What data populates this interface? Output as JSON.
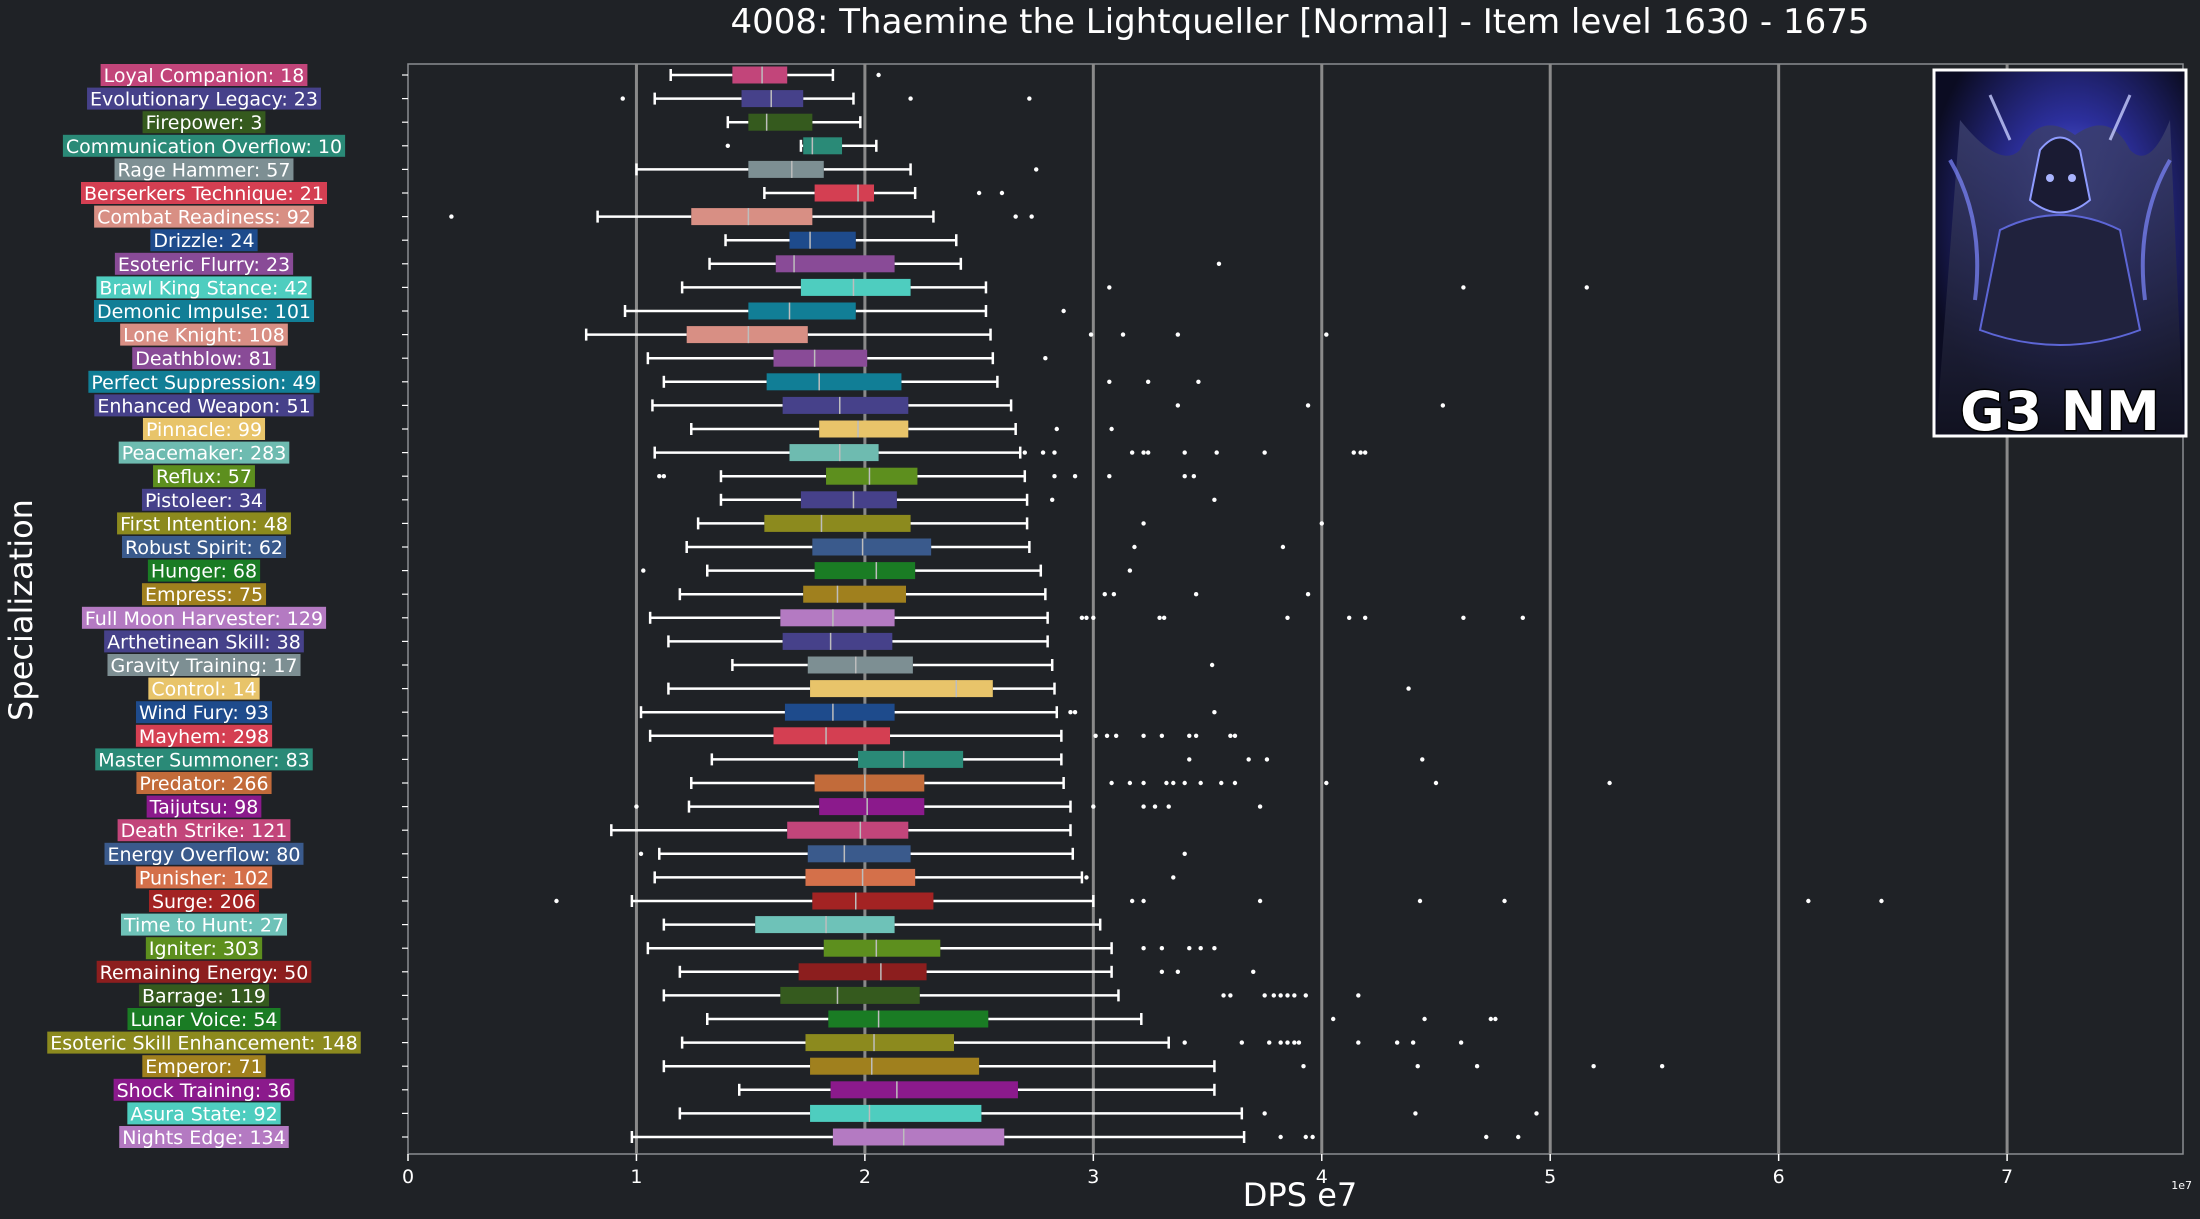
{
  "chart_data": {
    "type": "box",
    "title": "4008: Thaemine the Lightqueller [Normal] - Item level 1630 - 1675",
    "xlabel": "DPS e7",
    "ylabel": "Specialization",
    "x_scale_note": "1e7",
    "xlim": [
      0,
      7.77
    ],
    "x_ticks": [
      "0",
      "1",
      "2",
      "3",
      "4",
      "5",
      "6",
      "7"
    ],
    "x_tick_values": [
      0,
      1,
      2,
      3,
      4,
      5,
      6,
      7
    ],
    "grid": "vertical",
    "categories": [
      {
        "label": "Loyal Companion: 18",
        "color": "#c2457a",
        "whislo": 1.15,
        "q1": 1.42,
        "med": 1.55,
        "q3": 1.66,
        "whishi": 1.86,
        "fliers": [
          2.06
        ]
      },
      {
        "label": "Evolutionary Legacy: 23",
        "color": "#46418a",
        "whislo": 1.08,
        "q1": 1.46,
        "med": 1.59,
        "q3": 1.73,
        "whishi": 1.95,
        "fliers": [
          0.94,
          2.2,
          2.72
        ]
      },
      {
        "label": "Firepower: 3",
        "color": "#355a1e",
        "whislo": 1.4,
        "q1": 1.49,
        "med": 1.57,
        "q3": 1.77,
        "whishi": 1.98,
        "fliers": []
      },
      {
        "label": "Communication Overflow: 10",
        "color": "#2a8a77",
        "whislo": 1.72,
        "q1": 1.73,
        "med": 1.77,
        "q3": 1.9,
        "whishi": 2.05,
        "fliers": [
          1.4
        ]
      },
      {
        "label": "Rage Hammer: 57",
        "color": "#7d8f93",
        "whislo": 1.0,
        "q1": 1.49,
        "med": 1.68,
        "q3": 1.82,
        "whishi": 2.2,
        "fliers": [
          2.75
        ]
      },
      {
        "label": "Berserkers Technique: 21",
        "color": "#d43f52",
        "whislo": 1.56,
        "q1": 1.78,
        "med": 1.97,
        "q3": 2.04,
        "whishi": 2.22,
        "fliers": [
          2.5,
          2.6
        ]
      },
      {
        "label": "Combat Readiness: 92",
        "color": "#d88f84",
        "whislo": 0.83,
        "q1": 1.24,
        "med": 1.49,
        "q3": 1.77,
        "whishi": 2.3,
        "fliers": [
          0.19,
          2.66,
          2.73
        ]
      },
      {
        "label": "Drizzle: 24",
        "color": "#1e4b8c",
        "whislo": 1.39,
        "q1": 1.67,
        "med": 1.76,
        "q3": 1.96,
        "whishi": 2.4,
        "fliers": []
      },
      {
        "label": "Esoteric Flurry: 23",
        "color": "#894b97",
        "whislo": 1.32,
        "q1": 1.61,
        "med": 1.69,
        "q3": 2.13,
        "whishi": 2.42,
        "fliers": [
          3.55
        ]
      },
      {
        "label": "Brawl King Stance: 42",
        "color": "#4ecdbf",
        "whislo": 1.2,
        "q1": 1.72,
        "med": 1.95,
        "q3": 2.2,
        "whishi": 2.53,
        "fliers": [
          3.07,
          4.62,
          5.16
        ]
      },
      {
        "label": "Demonic Impulse: 101",
        "color": "#117e96",
        "whislo": 0.95,
        "q1": 1.49,
        "med": 1.67,
        "q3": 1.96,
        "whishi": 2.53,
        "fliers": [
          2.87
        ]
      },
      {
        "label": "Lone Knight: 108",
        "color": "#d88f84",
        "whislo": 0.78,
        "q1": 1.22,
        "med": 1.49,
        "q3": 1.75,
        "whishi": 2.55,
        "fliers": [
          2.99,
          3.13,
          3.37,
          4.02
        ]
      },
      {
        "label": "Deathblow: 81",
        "color": "#894b97",
        "whislo": 1.05,
        "q1": 1.6,
        "med": 1.78,
        "q3": 2.01,
        "whishi": 2.56,
        "fliers": [
          2.79
        ]
      },
      {
        "label": "Perfect Suppression: 49",
        "color": "#117e96",
        "whislo": 1.12,
        "q1": 1.57,
        "med": 1.8,
        "q3": 2.16,
        "whishi": 2.58,
        "fliers": [
          3.07,
          3.24,
          3.46
        ]
      },
      {
        "label": "Enhanced Weapon: 51",
        "color": "#46418a",
        "whislo": 1.07,
        "q1": 1.64,
        "med": 1.89,
        "q3": 2.19,
        "whishi": 2.64,
        "fliers": [
          3.37,
          3.94,
          4.53
        ]
      },
      {
        "label": "Pinnacle: 99",
        "color": "#e8c46a",
        "whislo": 1.24,
        "q1": 1.8,
        "med": 1.97,
        "q3": 2.19,
        "whishi": 2.66,
        "fliers": [
          2.84,
          3.08
        ]
      },
      {
        "label": "Peacemaker: 283",
        "color": "#6ebbb0",
        "whislo": 1.08,
        "q1": 1.67,
        "med": 1.89,
        "q3": 2.06,
        "whishi": 2.68,
        "fliers": [
          2.7,
          2.78,
          2.83,
          3.17,
          3.22,
          3.24,
          3.4,
          3.54,
          3.75,
          4.14,
          4.17,
          4.19
        ]
      },
      {
        "label": "Reflux: 57",
        "color": "#5d8f1e",
        "whislo": 1.37,
        "q1": 1.83,
        "med": 2.02,
        "q3": 2.23,
        "whishi": 2.7,
        "fliers": [
          1.1,
          1.12,
          2.83,
          2.92,
          3.07,
          3.4,
          3.44
        ]
      },
      {
        "label": "Pistoleer: 34",
        "color": "#46418a",
        "whislo": 1.37,
        "q1": 1.72,
        "med": 1.95,
        "q3": 2.14,
        "whishi": 2.71,
        "fliers": [
          2.82,
          3.53
        ]
      },
      {
        "label": "First Intention: 48",
        "color": "#8c8a1e",
        "whislo": 1.27,
        "q1": 1.56,
        "med": 1.81,
        "q3": 2.2,
        "whishi": 2.71,
        "fliers": [
          3.22,
          4.0
        ]
      },
      {
        "label": "Robust Spirit: 62",
        "color": "#3a5a8c",
        "whislo": 1.22,
        "q1": 1.77,
        "med": 1.99,
        "q3": 2.29,
        "whishi": 2.72,
        "fliers": [
          3.18,
          3.83
        ]
      },
      {
        "label": "Hunger: 68",
        "color": "#1a7c24",
        "whislo": 1.31,
        "q1": 1.78,
        "med": 2.05,
        "q3": 2.22,
        "whishi": 2.77,
        "fliers": [
          1.03,
          3.16
        ]
      },
      {
        "label": "Empress: 75",
        "color": "#a0801e",
        "whislo": 1.19,
        "q1": 1.73,
        "med": 1.88,
        "q3": 2.18,
        "whishi": 2.79,
        "fliers": [
          3.05,
          3.09,
          3.45,
          3.94
        ]
      },
      {
        "label": "Full Moon Harvester: 129",
        "color": "#b47ac2",
        "whislo": 1.06,
        "q1": 1.63,
        "med": 1.86,
        "q3": 2.13,
        "whishi": 2.8,
        "fliers": [
          2.95,
          2.97,
          3.0,
          3.29,
          3.31,
          3.85,
          4.12,
          4.19,
          4.62,
          4.88
        ]
      },
      {
        "label": "Arthetinean Skill: 38",
        "color": "#46418a",
        "whislo": 1.14,
        "q1": 1.64,
        "med": 1.85,
        "q3": 2.12,
        "whishi": 2.8,
        "fliers": []
      },
      {
        "label": "Gravity Training: 17",
        "color": "#7d8f93",
        "whislo": 1.42,
        "q1": 1.75,
        "med": 1.96,
        "q3": 2.21,
        "whishi": 2.82,
        "fliers": [
          3.52
        ]
      },
      {
        "label": "Control: 14",
        "color": "#e8c46a",
        "whislo": 1.14,
        "q1": 1.76,
        "med": 2.4,
        "q3": 2.56,
        "whishi": 2.83,
        "fliers": [
          4.38
        ]
      },
      {
        "label": "Wind Fury: 93",
        "color": "#1e4b8c",
        "whislo": 1.02,
        "q1": 1.65,
        "med": 1.86,
        "q3": 2.13,
        "whishi": 2.84,
        "fliers": [
          2.9,
          2.92,
          3.53
        ]
      },
      {
        "label": "Mayhem: 298",
        "color": "#d43f52",
        "whislo": 1.06,
        "q1": 1.6,
        "med": 1.83,
        "q3": 2.11,
        "whishi": 2.86,
        "fliers": [
          3.01,
          3.06,
          3.1,
          3.22,
          3.3,
          3.42,
          3.45,
          3.6,
          3.62
        ]
      },
      {
        "label": "Master Summoner: 83",
        "color": "#2a8a77",
        "whislo": 1.33,
        "q1": 1.97,
        "med": 2.17,
        "q3": 2.43,
        "whishi": 2.86,
        "fliers": [
          3.42,
          3.68,
          3.76,
          4.44
        ]
      },
      {
        "label": "Predator: 266",
        "color": "#c26b3a",
        "whislo": 1.24,
        "q1": 1.78,
        "med": 2.0,
        "q3": 2.26,
        "whishi": 2.87,
        "fliers": [
          3.08,
          3.16,
          3.22,
          3.32,
          3.35,
          3.4,
          3.47,
          3.56,
          3.62,
          4.02,
          4.5,
          5.26
        ]
      },
      {
        "label": "Taijutsu: 98",
        "color": "#8b1a8c",
        "whislo": 1.23,
        "q1": 1.8,
        "med": 2.01,
        "q3": 2.26,
        "whishi": 2.9,
        "fliers": [
          1.0,
          3.0,
          3.22,
          3.27,
          3.33,
          3.73
        ]
      },
      {
        "label": "Death Strike: 121",
        "color": "#c2457a",
        "whislo": 0.89,
        "q1": 1.66,
        "med": 1.98,
        "q3": 2.19,
        "whishi": 2.9,
        "fliers": []
      },
      {
        "label": "Energy Overflow: 80",
        "color": "#3a5a8c",
        "whislo": 1.1,
        "q1": 1.75,
        "med": 1.91,
        "q3": 2.2,
        "whishi": 2.91,
        "fliers": [
          1.02,
          3.4
        ]
      },
      {
        "label": "Punisher: 102",
        "color": "#d4704a",
        "whislo": 1.08,
        "q1": 1.74,
        "med": 1.99,
        "q3": 2.22,
        "whishi": 2.95,
        "fliers": [
          2.97,
          3.35
        ]
      },
      {
        "label": "Surge: 206",
        "color": "#a32323",
        "whislo": 0.98,
        "q1": 1.77,
        "med": 1.96,
        "q3": 2.3,
        "whishi": 3.0,
        "fliers": [
          0.65,
          3.17,
          3.22,
          3.73,
          4.43,
          4.8,
          6.13,
          6.45
        ]
      },
      {
        "label": "Time to Hunt: 27",
        "color": "#6ec2b8",
        "whislo": 1.12,
        "q1": 1.52,
        "med": 1.83,
        "q3": 2.13,
        "whishi": 3.03,
        "fliers": []
      },
      {
        "label": "Igniter: 303",
        "color": "#5d8f1e",
        "whislo": 1.05,
        "q1": 1.82,
        "med": 2.05,
        "q3": 2.33,
        "whishi": 3.08,
        "fliers": [
          3.22,
          3.3,
          3.42,
          3.47,
          3.53
        ]
      },
      {
        "label": "Remaining Energy: 50",
        "color": "#8c1e1e",
        "whislo": 1.19,
        "q1": 1.71,
        "med": 2.07,
        "q3": 2.27,
        "whishi": 3.08,
        "fliers": [
          3.3,
          3.37,
          3.7
        ]
      },
      {
        "label": "Barrage: 119",
        "color": "#355a1e",
        "whislo": 1.12,
        "q1": 1.63,
        "med": 1.88,
        "q3": 2.24,
        "whishi": 3.11,
        "fliers": [
          3.57,
          3.6,
          3.75,
          3.79,
          3.82,
          3.85,
          3.88,
          3.93,
          4.16
        ]
      },
      {
        "label": "Lunar Voice: 54",
        "color": "#1a7c24",
        "whislo": 1.31,
        "q1": 1.84,
        "med": 2.06,
        "q3": 2.54,
        "whishi": 3.21,
        "fliers": [
          4.05,
          4.45,
          4.74,
          4.76
        ]
      },
      {
        "label": "Esoteric Skill Enhancement: 148",
        "color": "#8c8a1e",
        "whislo": 1.2,
        "q1": 1.74,
        "med": 2.04,
        "q3": 2.39,
        "whishi": 3.33,
        "fliers": [
          3.4,
          3.65,
          3.77,
          3.82,
          3.85,
          3.88,
          3.9,
          4.16,
          4.33,
          4.4,
          4.61
        ]
      },
      {
        "label": "Emperor: 71",
        "color": "#a0801e",
        "whislo": 1.12,
        "q1": 1.76,
        "med": 2.03,
        "q3": 2.5,
        "whishi": 3.53,
        "fliers": [
          3.92,
          4.42,
          4.68,
          5.19,
          5.49
        ]
      },
      {
        "label": "Shock Training: 36",
        "color": "#8b1a8c",
        "whislo": 1.45,
        "q1": 1.85,
        "med": 2.14,
        "q3": 2.67,
        "whishi": 3.53,
        "fliers": []
      },
      {
        "label": "Asura State: 92",
        "color": "#4ecdbf",
        "whislo": 1.19,
        "q1": 1.76,
        "med": 2.02,
        "q3": 2.51,
        "whishi": 3.65,
        "fliers": [
          3.75,
          4.41,
          4.94
        ]
      },
      {
        "label": "Nights Edge: 134",
        "color": "#b47ac2",
        "whislo": 0.98,
        "q1": 1.86,
        "med": 2.17,
        "q3": 2.61,
        "whishi": 3.66,
        "fliers": [
          3.82,
          3.93,
          3.96,
          4.72,
          4.86
        ]
      }
    ]
  },
  "badge": {
    "text": "G3 NM",
    "icon": "raid-boss-portrait"
  }
}
